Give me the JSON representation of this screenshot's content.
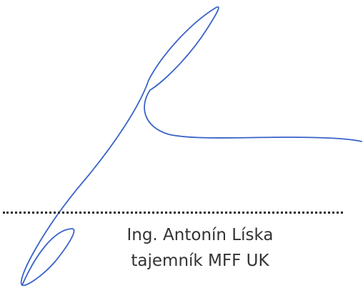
{
  "signature_block": {
    "name": "Ing. Antonín Líska",
    "title": "tajemník MFF UK",
    "ink_color": "#3a63c8",
    "text_color": "#333333",
    "dotted_line_color": "#2b2b2b"
  }
}
